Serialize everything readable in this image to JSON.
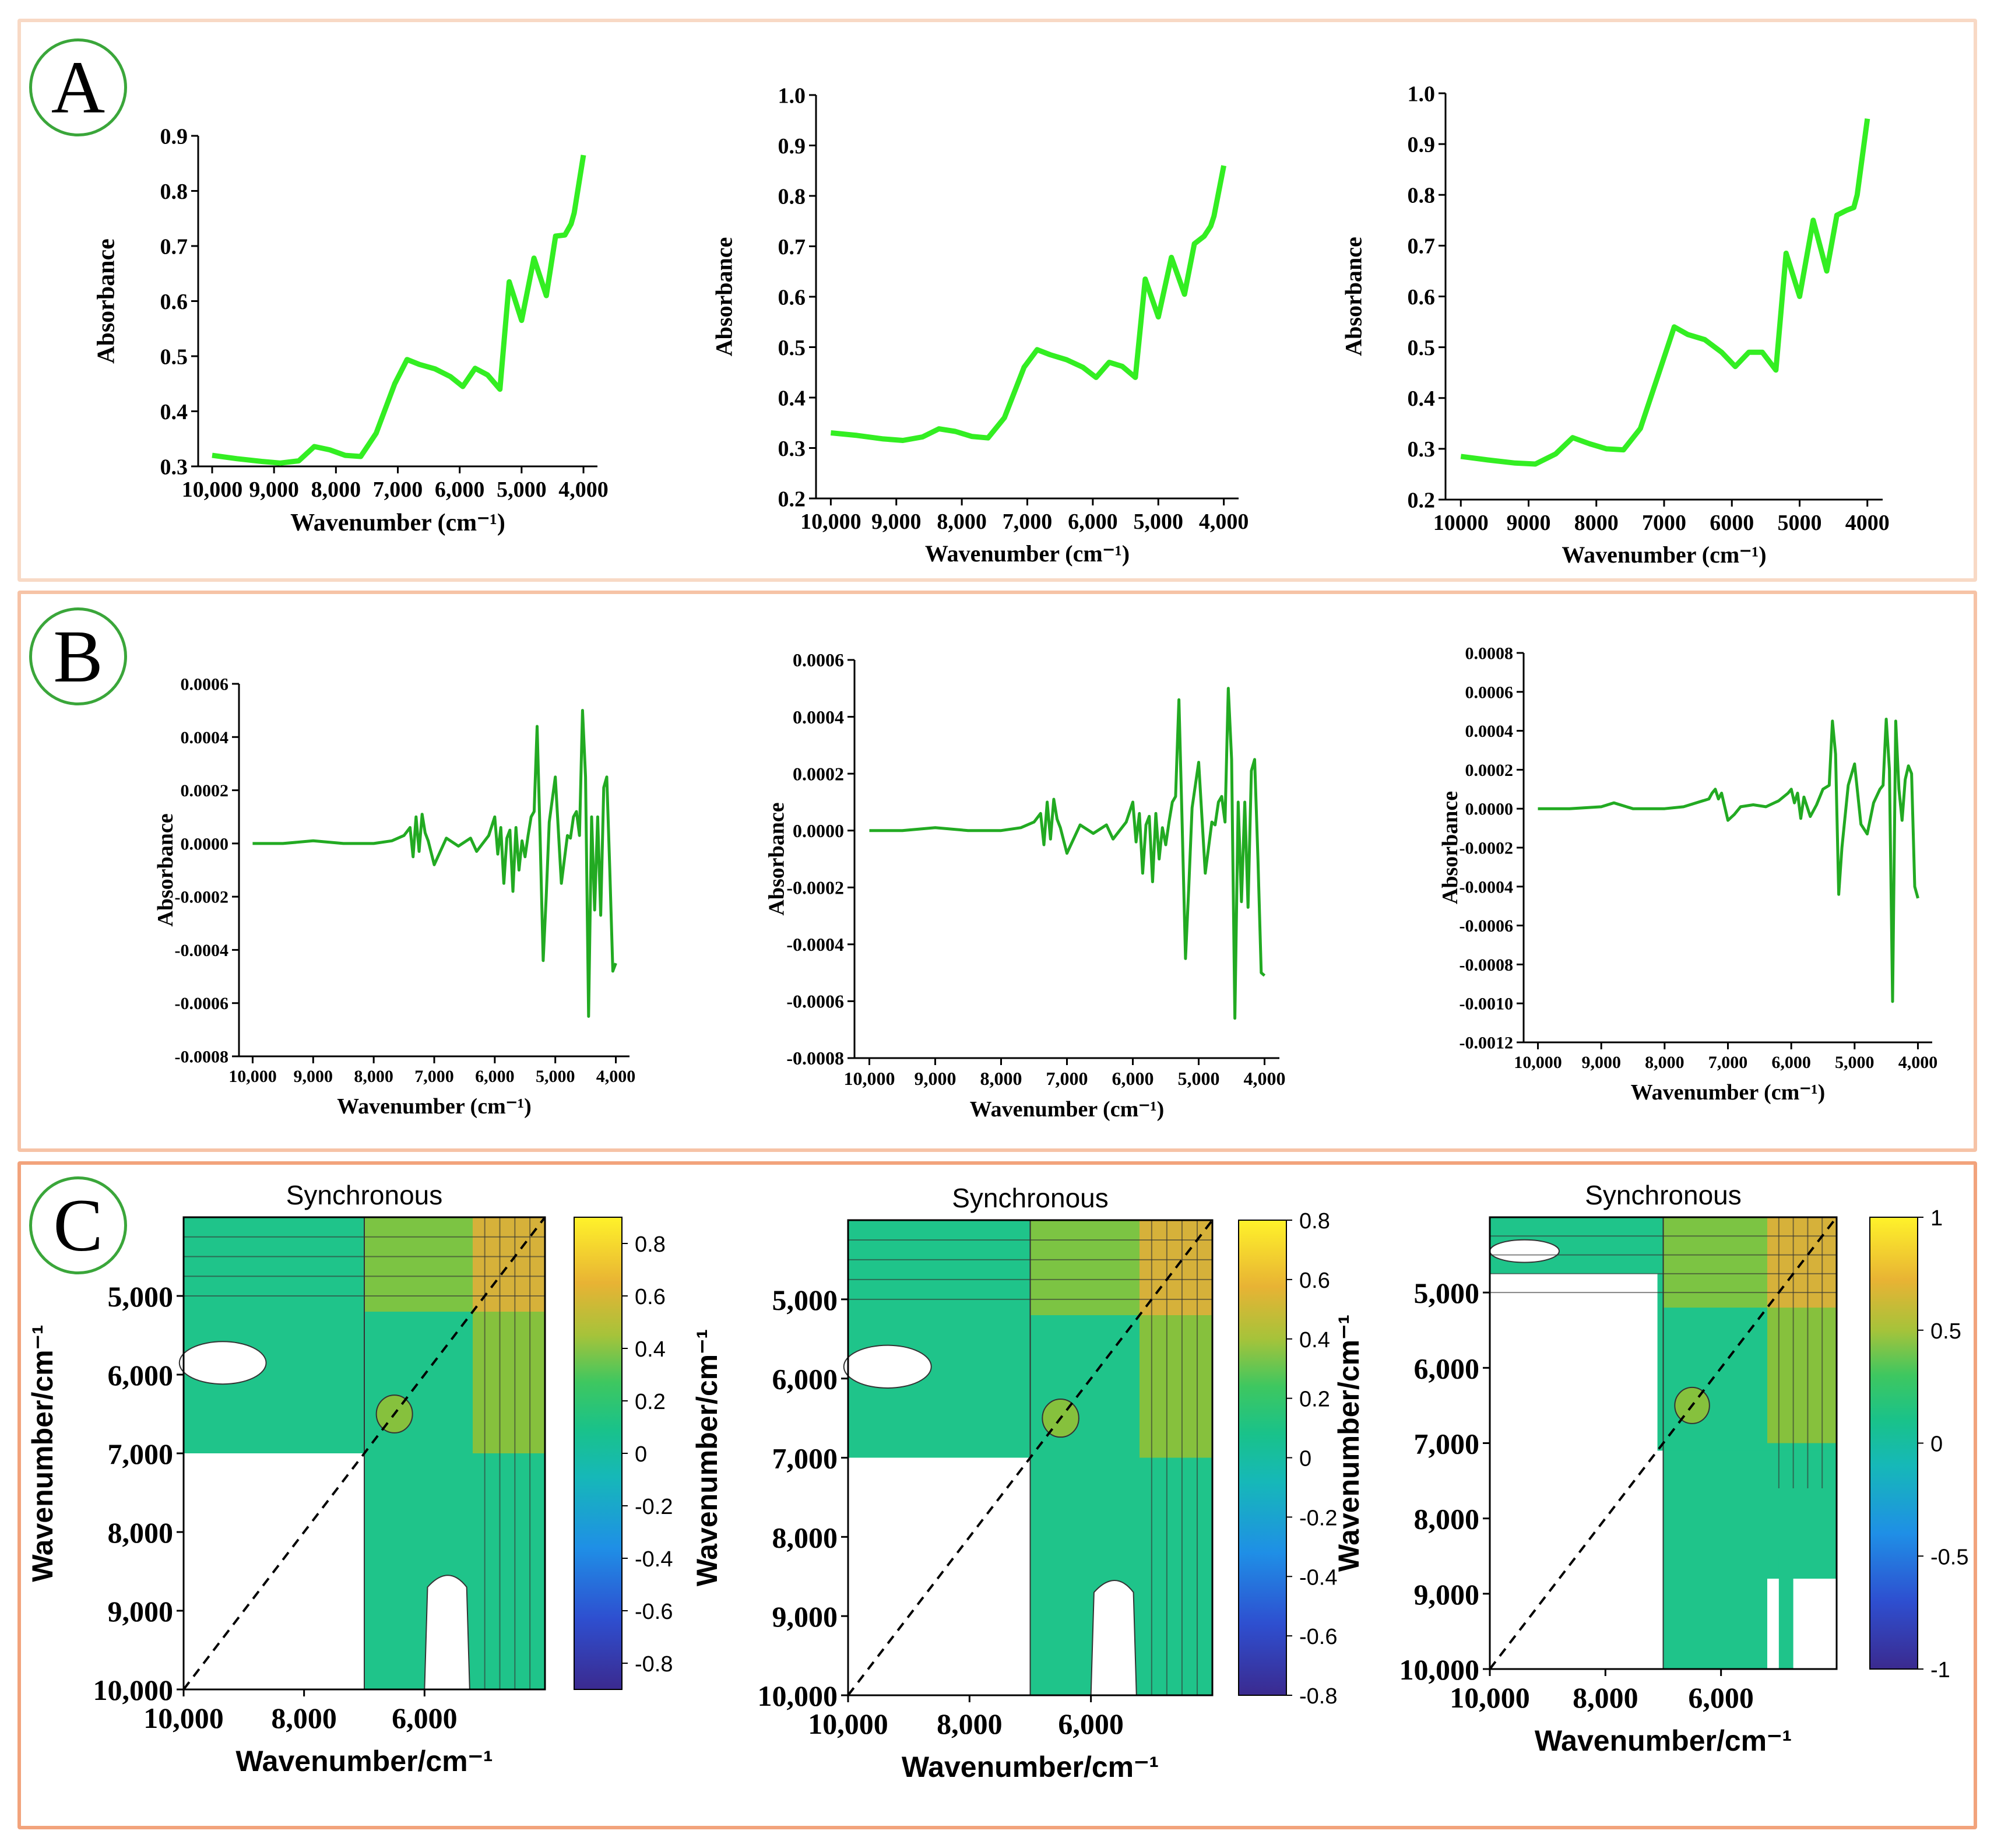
{
  "panels": [
    {
      "label": "A",
      "border": "#f8d9c5"
    },
    {
      "label": "B",
      "border": "#f6c3a6"
    },
    {
      "label": "C",
      "border": "#f2a37c"
    }
  ],
  "colors": {
    "spectrum_a": "#33ee22",
    "spectrum_b": "#22aa22"
  },
  "chart_data": [
    {
      "id": "A1",
      "type": "line",
      "xlabel": "Wavenumber (cm⁻¹)",
      "ylabel": "Absorbance",
      "xlim": [
        10000,
        4000
      ],
      "ylim": [
        0.3,
        0.9
      ],
      "xticks": [
        "10,000",
        "9,000",
        "8,000",
        "7,000",
        "6,000",
        "5,000",
        "4,000"
      ],
      "yticks": [
        "0.3",
        "0.4",
        "0.5",
        "0.6",
        "0.7",
        "0.8",
        "0.9"
      ],
      "series": [
        {
          "x": [
            10000,
            9600,
            9200,
            8900,
            8600,
            8350,
            8100,
            7850,
            7600,
            7350,
            7050,
            6850,
            6650,
            6400,
            6150,
            5950,
            5750,
            5550,
            5350,
            5200,
            5000,
            4800,
            4600,
            4450,
            4300,
            4200,
            4150,
            4000
          ],
          "y": [
            0.32,
            0.314,
            0.309,
            0.306,
            0.31,
            0.336,
            0.33,
            0.32,
            0.318,
            0.36,
            0.45,
            0.494,
            0.485,
            0.477,
            0.463,
            0.445,
            0.478,
            0.466,
            0.44,
            0.635,
            0.565,
            0.678,
            0.61,
            0.718,
            0.72,
            0.74,
            0.76,
            0.865
          ]
        }
      ]
    },
    {
      "id": "A2",
      "type": "line",
      "xlabel": "Wavenumber (cm⁻¹)",
      "ylabel": "Absorbance",
      "xlim": [
        10000,
        4000
      ],
      "ylim": [
        0.2,
        1.0
      ],
      "xticks": [
        "10,000",
        "9,000",
        "8,000",
        "7,000",
        "6,000",
        "5,000",
        "4,000"
      ],
      "yticks": [
        "0.2",
        "0.3",
        "0.4",
        "0.5",
        "0.6",
        "0.7",
        "0.8",
        "0.9",
        "1.0"
      ],
      "series": [
        {
          "x": [
            10000,
            9600,
            9200,
            8900,
            8600,
            8350,
            8100,
            7850,
            7600,
            7350,
            7050,
            6850,
            6650,
            6400,
            6150,
            5950,
            5750,
            5550,
            5350,
            5200,
            5000,
            4800,
            4600,
            4450,
            4300,
            4200,
            4150,
            4000
          ],
          "y": [
            0.33,
            0.325,
            0.318,
            0.315,
            0.322,
            0.338,
            0.333,
            0.323,
            0.32,
            0.36,
            0.46,
            0.495,
            0.485,
            0.475,
            0.46,
            0.44,
            0.47,
            0.462,
            0.44,
            0.635,
            0.56,
            0.678,
            0.605,
            0.705,
            0.72,
            0.74,
            0.76,
            0.86
          ]
        }
      ]
    },
    {
      "id": "A3",
      "type": "line",
      "xlabel": "Wavenumber (cm⁻¹)",
      "ylabel": "Absorbance",
      "xlim": [
        10000,
        4000
      ],
      "ylim": [
        0.2,
        1.0
      ],
      "xticks": [
        "10000",
        "9000",
        "8000",
        "7000",
        "6000",
        "5000",
        "4000"
      ],
      "yticks": [
        "0.2",
        "0.3",
        "0.4",
        "0.5",
        "0.6",
        "0.7",
        "0.8",
        "0.9",
        "1.0"
      ],
      "series": [
        {
          "x": [
            10000,
            9600,
            9200,
            8900,
            8600,
            8350,
            8100,
            7850,
            7600,
            7350,
            7050,
            6850,
            6650,
            6400,
            6150,
            5950,
            5750,
            5550,
            5350,
            5200,
            5000,
            4800,
            4600,
            4450,
            4300,
            4200,
            4150,
            4000
          ],
          "y": [
            0.285,
            0.278,
            0.272,
            0.27,
            0.29,
            0.322,
            0.31,
            0.3,
            0.298,
            0.34,
            0.46,
            0.54,
            0.525,
            0.515,
            0.49,
            0.462,
            0.49,
            0.49,
            0.455,
            0.685,
            0.6,
            0.75,
            0.65,
            0.76,
            0.77,
            0.775,
            0.8,
            0.95
          ]
        }
      ]
    },
    {
      "id": "B1",
      "type": "line",
      "xlabel": "Wavenumber (cm⁻¹)",
      "ylabel": "Absorbance",
      "xlim": [
        10000,
        4000
      ],
      "ylim": [
        -0.0008,
        0.0006
      ],
      "xticks": [
        "10,000",
        "9,000",
        "8,000",
        "7,000",
        "6,000",
        "5,000",
        "4,000"
      ],
      "yticks": [
        "-0.0008",
        "-0.0006",
        "-0.0004",
        "-0.0002",
        "0.0000",
        "0.0002",
        "0.0004",
        "0.0006"
      ],
      "series": [
        {
          "x": [
            10000,
            9500,
            9000,
            8500,
            8000,
            7700,
            7500,
            7400,
            7350,
            7300,
            7250,
            7200,
            7150,
            7100,
            7000,
            6900,
            6800,
            6600,
            6400,
            6300,
            6200,
            6100,
            6000,
            5950,
            5900,
            5850,
            5800,
            5750,
            5700,
            5650,
            5600,
            5550,
            5500,
            5450,
            5400,
            5350,
            5300,
            5250,
            5200,
            5150,
            5100,
            5000,
            4900,
            4800,
            4750,
            4700,
            4650,
            4600,
            4550,
            4500,
            4450,
            4400,
            4350,
            4300,
            4250,
            4200,
            4150,
            4100,
            4050,
            4000
          ],
          "y": [
            0,
            0,
            1e-05,
            0,
            0,
            1e-05,
            3e-05,
            6e-05,
            -5e-05,
            0.0001,
            -3e-05,
            0.00011,
            4e-05,
            1e-05,
            -8e-05,
            -3e-05,
            2e-05,
            -1e-05,
            2e-05,
            -3e-05,
            0,
            3e-05,
            0.0001,
            -4e-05,
            6e-05,
            -0.00015,
            2e-05,
            5e-05,
            -0.00018,
            6e-05,
            -0.0001,
            1e-05,
            -5e-05,
            3e-05,
            0.0001,
            0.00012,
            0.00044,
            2e-05,
            -0.00044,
            -0.0002,
            8e-05,
            0.00025,
            -0.00015,
            3e-05,
            2e-05,
            0.0001,
            0.00012,
            3e-05,
            0.0005,
            0.00025,
            -0.00065,
            0.0001,
            -0.00025,
            0.0001,
            -0.00027,
            0.00021,
            0.00025,
            -0.0001,
            -0.00048,
            -0.00045
          ]
        }
      ]
    },
    {
      "id": "B2",
      "type": "line",
      "xlabel": "Wavenumber (cm⁻¹)",
      "ylabel": "Absorbance",
      "xlim": [
        10000,
        4000
      ],
      "ylim": [
        -0.0008,
        0.0006
      ],
      "xticks": [
        "10,000",
        "9,000",
        "8,000",
        "7,000",
        "6,000",
        "5,000",
        "4,000"
      ],
      "yticks": [
        "-0.0008",
        "-0.0006",
        "-0.0004",
        "-0.0002",
        "0.0000",
        "0.0002",
        "0.0004",
        "0.0006"
      ],
      "series": [
        {
          "x": [
            10000,
            9500,
            9000,
            8500,
            8000,
            7700,
            7500,
            7400,
            7350,
            7300,
            7250,
            7200,
            7150,
            7100,
            7000,
            6900,
            6800,
            6600,
            6400,
            6300,
            6200,
            6100,
            6000,
            5950,
            5900,
            5850,
            5800,
            5750,
            5700,
            5650,
            5600,
            5550,
            5500,
            5450,
            5400,
            5350,
            5300,
            5250,
            5200,
            5150,
            5100,
            5000,
            4900,
            4800,
            4750,
            4700,
            4650,
            4600,
            4550,
            4500,
            4450,
            4400,
            4350,
            4300,
            4250,
            4200,
            4150,
            4100,
            4050,
            4000
          ],
          "y": [
            0,
            0,
            1e-05,
            0,
            0,
            1e-05,
            3e-05,
            6e-05,
            -5e-05,
            0.0001,
            -3e-05,
            0.00011,
            4e-05,
            1e-05,
            -8e-05,
            -3e-05,
            2e-05,
            -1e-05,
            2e-05,
            -3e-05,
            0,
            3e-05,
            0.0001,
            -4e-05,
            6e-05,
            -0.00015,
            2e-05,
            5e-05,
            -0.00018,
            6e-05,
            -0.0001,
            1e-05,
            -5e-05,
            3e-05,
            0.0001,
            0.00012,
            0.00046,
            2e-05,
            -0.00045,
            -0.0002,
            8e-05,
            0.00024,
            -0.00015,
            3e-05,
            2e-05,
            0.0001,
            0.00012,
            3e-05,
            0.0005,
            0.00025,
            -0.00066,
            0.0001,
            -0.00025,
            0.0001,
            -0.00027,
            0.00021,
            0.00025,
            -0.0001,
            -0.0005,
            -0.00051
          ]
        }
      ]
    },
    {
      "id": "B3",
      "type": "line",
      "xlabel": "Wavenumber (cm⁻¹)",
      "ylabel": "Absorbance",
      "xlim": [
        10000,
        4000
      ],
      "ylim": [
        -0.0012,
        0.0008
      ],
      "xticks": [
        "10,000",
        "9,000",
        "8,000",
        "7,000",
        "6,000",
        "5,000",
        "4,000"
      ],
      "yticks": [
        "-0.0012",
        "-0.0010",
        "-0.0008",
        "-0.0006",
        "-0.0004",
        "-0.0002",
        "0.0000",
        "0.0002",
        "0.0004",
        "0.0006",
        "0.0008"
      ],
      "series": [
        {
          "x": [
            10000,
            9500,
            9000,
            8800,
            8500,
            8000,
            7700,
            7400,
            7300,
            7250,
            7200,
            7150,
            7100,
            7000,
            6900,
            6800,
            6600,
            6400,
            6200,
            6050,
            6000,
            5950,
            5900,
            5850,
            5800,
            5700,
            5600,
            5500,
            5400,
            5350,
            5300,
            5250,
            5200,
            5100,
            5000,
            4900,
            4800,
            4700,
            4600,
            4550,
            4500,
            4450,
            4400,
            4350,
            4300,
            4250,
            4200,
            4150,
            4100,
            4050,
            4000
          ],
          "y": [
            0,
            0,
            1e-05,
            3e-05,
            0,
            0,
            1e-05,
            4e-05,
            5e-05,
            8e-05,
            0.0001,
            5e-05,
            8e-05,
            -6e-05,
            -3e-05,
            1e-05,
            2e-05,
            1e-05,
            4e-05,
            8e-05,
            0.0001,
            3e-05,
            8e-05,
            -5e-05,
            6e-05,
            -4e-05,
            2e-05,
            0.0001,
            0.00012,
            0.00045,
            0.00028,
            -0.00044,
            -0.0002,
            0.00012,
            0.00023,
            -8e-05,
            -0.00013,
            3e-05,
            0.0001,
            0.00012,
            0.00046,
            0.0002,
            -0.00099,
            0.00045,
            0.0001,
            -6e-05,
            0.00015,
            0.00022,
            0.00018,
            -0.0004,
            -0.00046
          ]
        }
      ]
    },
    {
      "id": "C1",
      "type": "heatmap",
      "title": "Synchronous",
      "xlabel": "Wavenumber/cm⁻¹",
      "ylabel": "Wavenumber/cm⁻¹",
      "xlim": [
        10000,
        4000
      ],
      "ylim": [
        4000,
        10000
      ],
      "xticks": [
        "10,000",
        "8,000",
        "6,000"
      ],
      "yticks": [
        "5,000",
        "6,000",
        "7,000",
        "8,000",
        "9,000",
        "10,000"
      ],
      "colorbar": {
        "min": -0.9,
        "max": 0.9,
        "ticks": [
          "0.8",
          "0.6",
          "0.4",
          "0.2",
          "0",
          "-0.2",
          "-0.4",
          "-0.6",
          "-0.8"
        ]
      }
    },
    {
      "id": "C2",
      "type": "heatmap",
      "title": "Synchronous",
      "xlabel": "Wavenumber/cm⁻¹",
      "ylabel": "Wavenumber/cm⁻¹",
      "xlim": [
        10000,
        4000
      ],
      "ylim": [
        4000,
        10000
      ],
      "xticks": [
        "10,000",
        "8,000",
        "6,000"
      ],
      "yticks": [
        "5,000",
        "6,000",
        "7,000",
        "8,000",
        "9,000",
        "10,000"
      ],
      "colorbar": {
        "min": -0.8,
        "max": 0.8,
        "ticks": [
          "0.8",
          "0.6",
          "0.4",
          "0.2",
          "0",
          "-0.2",
          "-0.4",
          "-0.6",
          "-0.8"
        ]
      }
    },
    {
      "id": "C3",
      "type": "heatmap",
      "title": "Synchronous",
      "xlabel": "Wavenumber/cm⁻¹",
      "ylabel": "Wavenumber/cm⁻¹",
      "xlim": [
        10000,
        4000
      ],
      "ylim": [
        4000,
        10000
      ],
      "xticks": [
        "10,000",
        "8,000",
        "6,000"
      ],
      "yticks": [
        "5,000",
        "6,000",
        "7,000",
        "8,000",
        "9,000",
        "10,000"
      ],
      "colorbar": {
        "min": -1,
        "max": 1,
        "ticks": [
          "1",
          "0.5",
          "0",
          "-0.5",
          "-1"
        ]
      }
    }
  ]
}
